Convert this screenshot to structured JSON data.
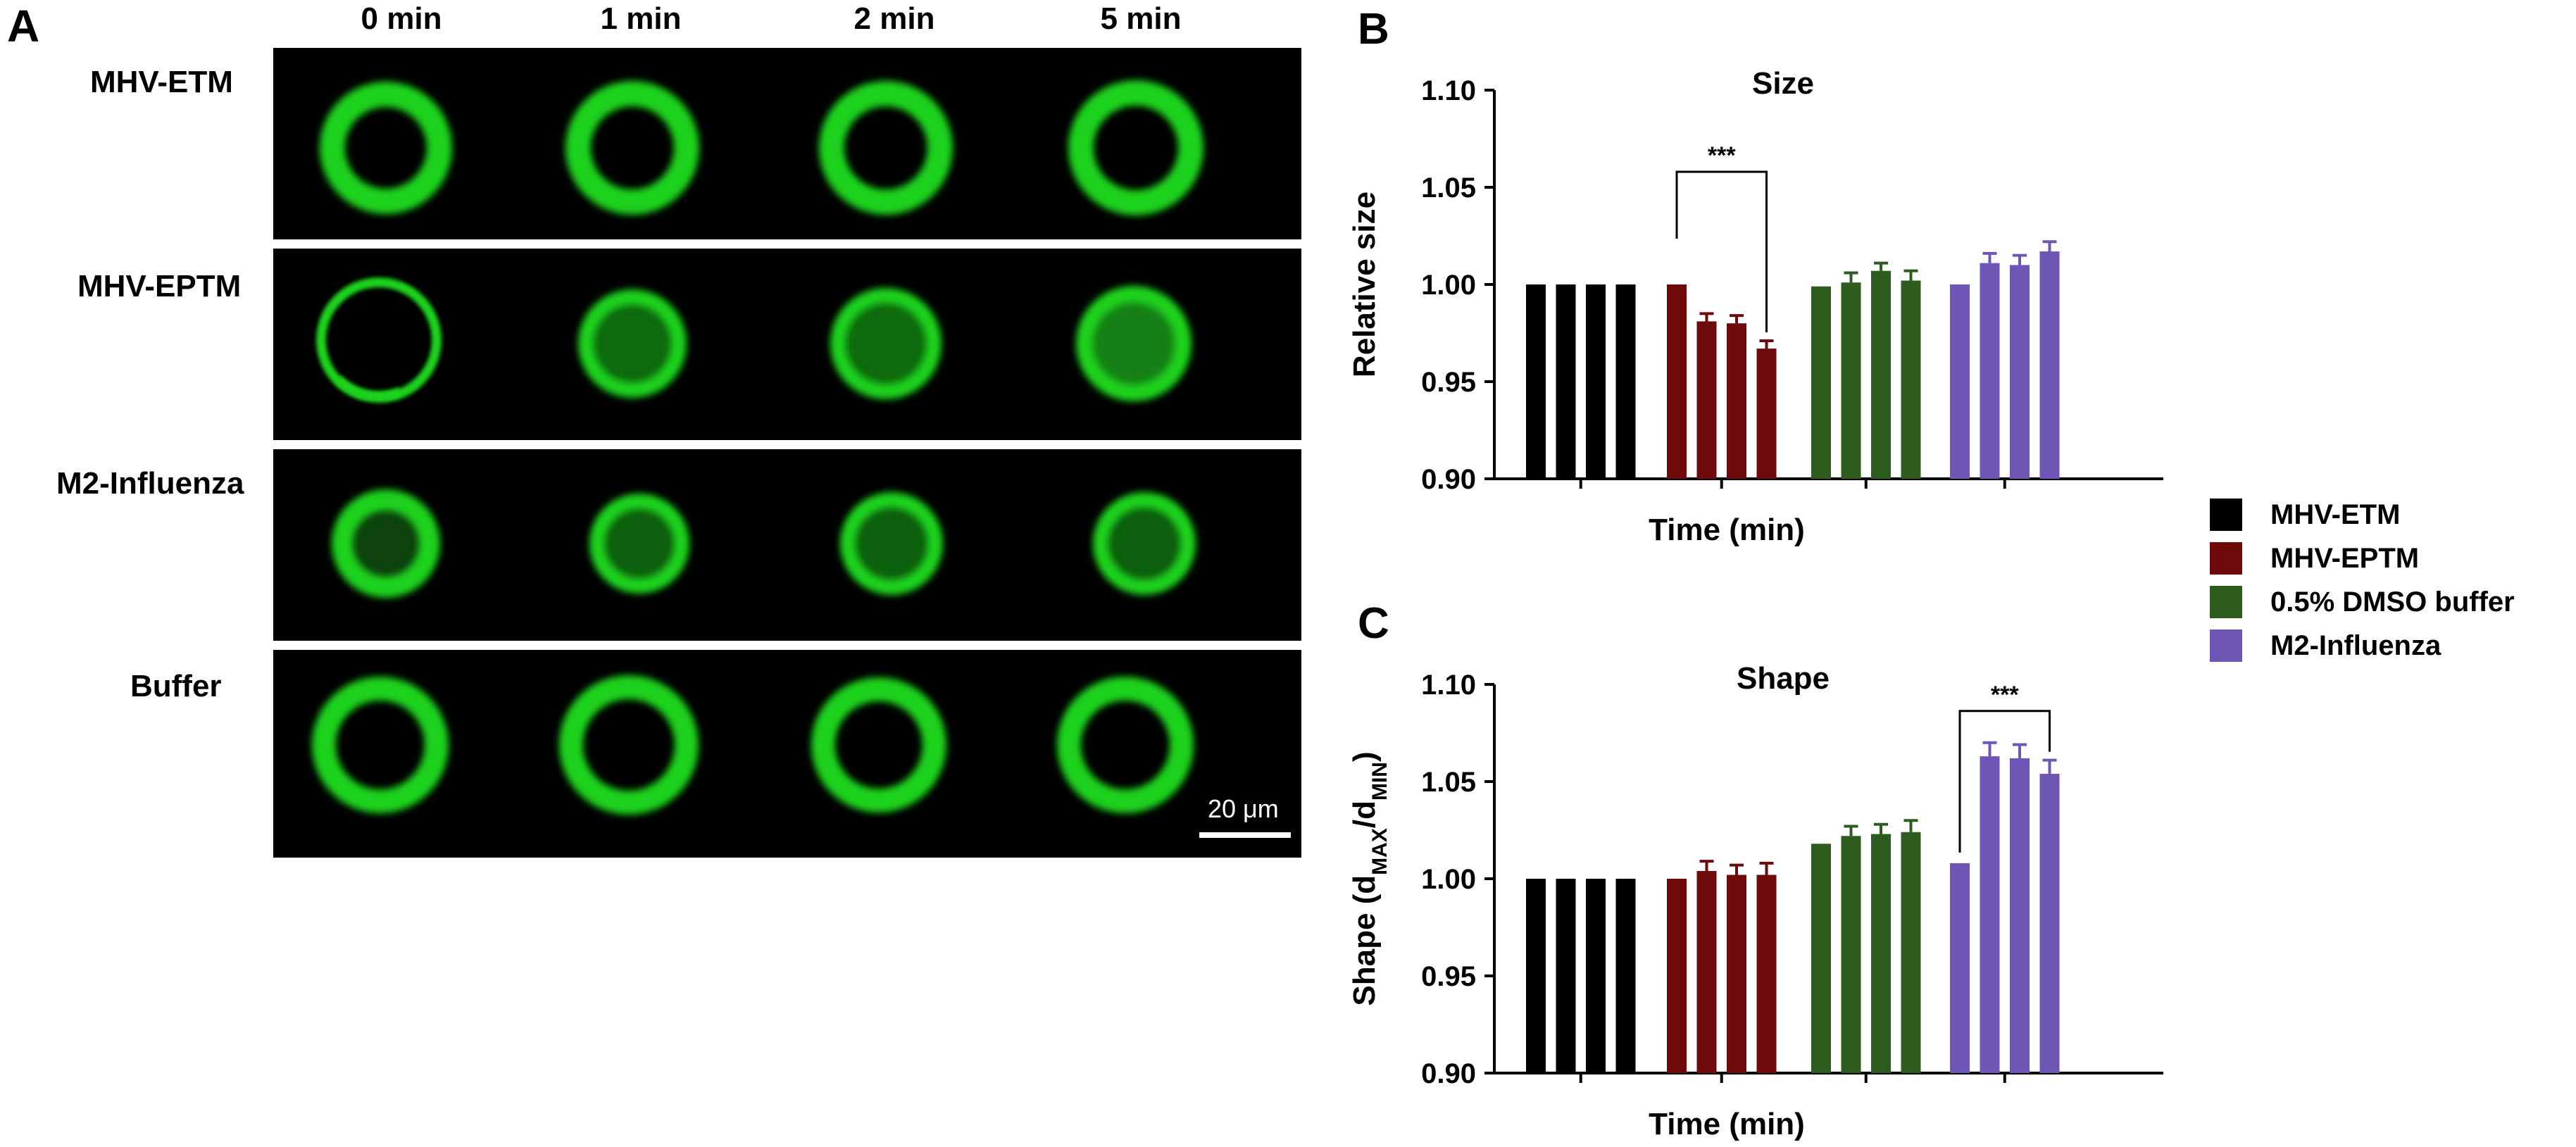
{
  "panel_a": {
    "letter": "A",
    "columns": [
      "0 min",
      "1 min",
      "2 min",
      "5 min"
    ],
    "rows": [
      "MHV-ETM",
      "MHV-EPTM",
      "M2-Influenza",
      "Buffer"
    ],
    "scale_bar": "20 μm",
    "fluorescence_color": "#1ed21e"
  },
  "legend": [
    {
      "label": "MHV-ETM",
      "color": "#000000"
    },
    {
      "label": "MHV-EPTM",
      "color": "#6e0a0a"
    },
    {
      "label": "0.5% DMSO buffer",
      "color": "#2e5c1e"
    },
    {
      "label": "M2-Influenza",
      "color": "#6f55b4"
    }
  ],
  "chart_data": [
    {
      "panel": "B",
      "type": "bar",
      "title": "Size",
      "ylabel": "Relative size",
      "xlabel": "Time (min)",
      "ylim": [
        0.9,
        1.1
      ],
      "yticks": [
        "0.90",
        "0.95",
        "1.00",
        "1.05",
        "1.10"
      ],
      "series": [
        {
          "name": "MHV-ETM",
          "values": [
            1.0,
            1.0,
            1.0,
            1.0
          ],
          "errors": [
            0,
            0,
            0,
            0
          ]
        },
        {
          "name": "MHV-EPTM",
          "values": [
            1.0,
            0.981,
            0.98,
            0.967
          ],
          "errors": [
            0,
            0.004,
            0.004,
            0.004
          ]
        },
        {
          "name": "0.5% DMSO buffer",
          "values": [
            0.999,
            1.001,
            1.007,
            1.002
          ],
          "errors": [
            0,
            0.005,
            0.004,
            0.005
          ]
        },
        {
          "name": "M2-Influenza",
          "values": [
            1.0,
            1.011,
            1.01,
            1.017
          ],
          "errors": [
            0,
            0.005,
            0.005,
            0.005
          ]
        }
      ],
      "significance": {
        "label": "***",
        "series": 1,
        "from": 0,
        "to": 3
      }
    },
    {
      "panel": "C",
      "type": "bar",
      "title": "Shape",
      "ylabel": "Shape (dMAX/dMIN)",
      "ylabel_parts": [
        "Shape (d",
        "MAX",
        "/d",
        "MIN",
        ")"
      ],
      "xlabel": "Time (min)",
      "ylim": [
        0.9,
        1.1
      ],
      "yticks": [
        "0.90",
        "0.95",
        "1.00",
        "1.05",
        "1.10"
      ],
      "series": [
        {
          "name": "MHV-ETM",
          "values": [
            1.0,
            1.0,
            1.0,
            1.0
          ],
          "errors": [
            0,
            0,
            0,
            0
          ]
        },
        {
          "name": "MHV-EPTM",
          "values": [
            1.0,
            1.004,
            1.002,
            1.002
          ],
          "errors": [
            0,
            0.005,
            0.005,
            0.006
          ]
        },
        {
          "name": "0.5% DMSO buffer",
          "values": [
            1.018,
            1.022,
            1.023,
            1.024
          ],
          "errors": [
            0,
            0.005,
            0.005,
            0.006
          ]
        },
        {
          "name": "M2-Influenza",
          "values": [
            1.008,
            1.063,
            1.062,
            1.054
          ],
          "errors": [
            0,
            0.007,
            0.007,
            0.007
          ]
        }
      ],
      "significance": {
        "label": "***",
        "series": 3,
        "from": 0,
        "to": 3
      }
    }
  ]
}
